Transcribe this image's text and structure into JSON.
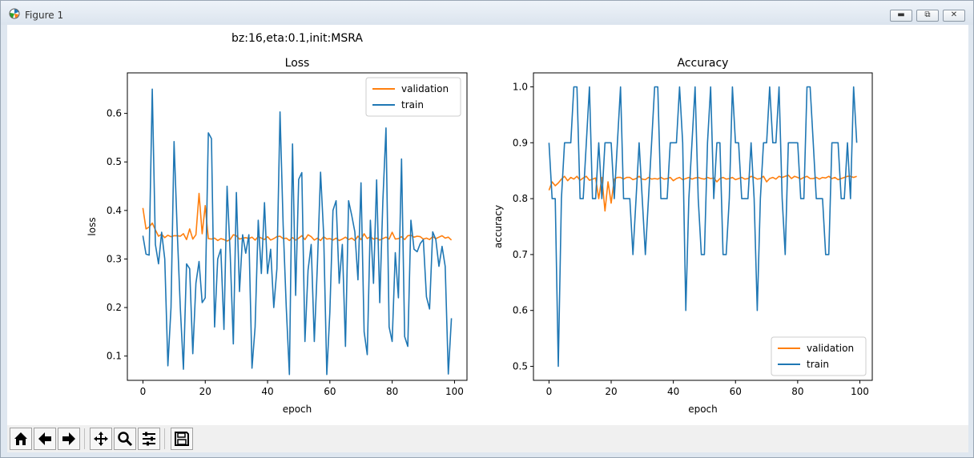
{
  "window": {
    "title": "Figure 1",
    "controls": [
      "minimize-icon",
      "maximize-icon",
      "close-icon"
    ]
  },
  "figure": {
    "suptitle": "bz:16,eta:0.1,init:MSRA"
  },
  "toolbar": {
    "buttons": [
      "home-icon",
      "back-icon",
      "forward-icon",
      "pan-icon",
      "zoom-icon",
      "configure-subplots-icon",
      "save-icon"
    ]
  },
  "colors": {
    "validation": "#ff7f0e",
    "train": "#1f77b4"
  },
  "chart_data": [
    {
      "type": "line",
      "title": "Loss",
      "xlabel": "epoch",
      "ylabel": "loss",
      "xlim": [
        -5,
        104
      ],
      "ylim": [
        0.05,
        0.6835
      ],
      "xticks": [
        0,
        20,
        40,
        60,
        80,
        100
      ],
      "yticks": [
        0.1,
        0.2,
        0.3,
        0.4,
        0.5,
        0.6
      ],
      "legend": "top-right",
      "x": [
        0,
        1,
        2,
        3,
        4,
        5,
        6,
        7,
        8,
        9,
        10,
        11,
        12,
        13,
        14,
        15,
        16,
        17,
        18,
        19,
        20,
        21,
        22,
        23,
        24,
        25,
        26,
        27,
        28,
        29,
        30,
        31,
        32,
        33,
        34,
        35,
        36,
        37,
        38,
        39,
        40,
        41,
        42,
        43,
        44,
        45,
        46,
        47,
        48,
        49,
        50,
        51,
        52,
        53,
        54,
        55,
        56,
        57,
        58,
        59,
        60,
        61,
        62,
        63,
        64,
        65,
        66,
        67,
        68,
        69,
        70,
        71,
        72,
        73,
        74,
        75,
        76,
        77,
        78,
        79,
        80,
        81,
        82,
        83,
        84,
        85,
        86,
        87,
        88,
        89,
        90,
        91,
        92,
        93,
        94,
        95,
        96,
        97,
        98,
        99
      ],
      "series": [
        {
          "name": "validation",
          "color": "#ff7f0e",
          "values": [
            0.405,
            0.362,
            0.366,
            0.374,
            0.36,
            0.347,
            0.351,
            0.344,
            0.349,
            0.346,
            0.348,
            0.348,
            0.347,
            0.352,
            0.34,
            0.362,
            0.341,
            0.35,
            0.435,
            0.352,
            0.41,
            0.342,
            0.341,
            0.343,
            0.338,
            0.342,
            0.34,
            0.337,
            0.34,
            0.35,
            0.348,
            0.341,
            0.343,
            0.344,
            0.342,
            0.345,
            0.339,
            0.346,
            0.343,
            0.34,
            0.346,
            0.339,
            0.342,
            0.346,
            0.347,
            0.342,
            0.343,
            0.338,
            0.344,
            0.339,
            0.343,
            0.348,
            0.34,
            0.35,
            0.346,
            0.339,
            0.343,
            0.338,
            0.346,
            0.341,
            0.342,
            0.339,
            0.343,
            0.338,
            0.341,
            0.345,
            0.34,
            0.343,
            0.338,
            0.347,
            0.34,
            0.352,
            0.342,
            0.346,
            0.341,
            0.343,
            0.339,
            0.342,
            0.345,
            0.341,
            0.355,
            0.341,
            0.342,
            0.346,
            0.34,
            0.348,
            0.349,
            0.345,
            0.347,
            0.346,
            0.341,
            0.343,
            0.34,
            0.346,
            0.342,
            0.345,
            0.348,
            0.343,
            0.345,
            0.339
          ]
        },
        {
          "name": "train",
          "color": "#1f77b4",
          "values": [
            0.348,
            0.31,
            0.308,
            0.65,
            0.33,
            0.29,
            0.355,
            0.3,
            0.08,
            0.2,
            0.542,
            0.36,
            0.2,
            0.073,
            0.29,
            0.28,
            0.105,
            0.25,
            0.295,
            0.21,
            0.22,
            0.56,
            0.548,
            0.16,
            0.3,
            0.32,
            0.155,
            0.45,
            0.31,
            0.125,
            0.437,
            0.233,
            0.35,
            0.312,
            0.35,
            0.075,
            0.16,
            0.38,
            0.27,
            0.416,
            0.27,
            0.32,
            0.2,
            0.28,
            0.603,
            0.37,
            0.2,
            0.062,
            0.537,
            0.225,
            0.464,
            0.478,
            0.13,
            0.277,
            0.33,
            0.13,
            0.29,
            0.479,
            0.35,
            0.062,
            0.19,
            0.4,
            0.42,
            0.25,
            0.33,
            0.12,
            0.42,
            0.39,
            0.356,
            0.257,
            0.457,
            0.15,
            0.103,
            0.38,
            0.25,
            0.463,
            0.21,
            0.42,
            0.57,
            0.16,
            0.13,
            0.313,
            0.22,
            0.506,
            0.14,
            0.12,
            0.38,
            0.32,
            0.315,
            0.332,
            0.34,
            0.222,
            0.197,
            0.356,
            0.34,
            0.285,
            0.326,
            0.285,
            0.063,
            0.178
          ]
        }
      ]
    },
    {
      "type": "line",
      "title": "Accuracy",
      "xlabel": "epoch",
      "ylabel": "accuracy",
      "xlim": [
        -5,
        104
      ],
      "ylim": [
        0.475,
        1.025
      ],
      "xticks": [
        0,
        20,
        40,
        60,
        80,
        100
      ],
      "yticks": [
        0.5,
        0.6,
        0.7,
        0.8,
        0.9,
        1.0
      ],
      "legend": "bottom-right",
      "x": [
        0,
        1,
        2,
        3,
        4,
        5,
        6,
        7,
        8,
        9,
        10,
        11,
        12,
        13,
        14,
        15,
        16,
        17,
        18,
        19,
        20,
        21,
        22,
        23,
        24,
        25,
        26,
        27,
        28,
        29,
        30,
        31,
        32,
        33,
        34,
        35,
        36,
        37,
        38,
        39,
        40,
        41,
        42,
        43,
        44,
        45,
        46,
        47,
        48,
        49,
        50,
        51,
        52,
        53,
        54,
        55,
        56,
        57,
        58,
        59,
        60,
        61,
        62,
        63,
        64,
        65,
        66,
        67,
        68,
        69,
        70,
        71,
        72,
        73,
        74,
        75,
        76,
        77,
        78,
        79,
        80,
        81,
        82,
        83,
        84,
        85,
        86,
        87,
        88,
        89,
        90,
        91,
        92,
        93,
        94,
        95,
        96,
        97,
        98,
        99
      ],
      "series": [
        {
          "name": "validation",
          "color": "#ff7f0e",
          "values": [
            0.815,
            0.83,
            0.823,
            0.828,
            0.835,
            0.84,
            0.832,
            0.838,
            0.835,
            0.84,
            0.833,
            0.837,
            0.84,
            0.833,
            0.835,
            0.837,
            0.8,
            0.838,
            0.778,
            0.83,
            0.792,
            0.835,
            0.838,
            0.838,
            0.835,
            0.838,
            0.838,
            0.834,
            0.836,
            0.84,
            0.835,
            0.834,
            0.838,
            0.835,
            0.836,
            0.835,
            0.838,
            0.835,
            0.836,
            0.838,
            0.832,
            0.836,
            0.838,
            0.834,
            0.836,
            0.838,
            0.835,
            0.837,
            0.838,
            0.836,
            0.835,
            0.838,
            0.836,
            0.837,
            0.83,
            0.836,
            0.838,
            0.835,
            0.836,
            0.838,
            0.834,
            0.836,
            0.838,
            0.835,
            0.836,
            0.84,
            0.838,
            0.835,
            0.836,
            0.84,
            0.83,
            0.836,
            0.838,
            0.835,
            0.84,
            0.838,
            0.84,
            0.842,
            0.836,
            0.84,
            0.838,
            0.835,
            0.838,
            0.84,
            0.836,
            0.836,
            0.838,
            0.835,
            0.838,
            0.837,
            0.84,
            0.836,
            0.838,
            0.834,
            0.836,
            0.838,
            0.84,
            0.84,
            0.838,
            0.84
          ]
        },
        {
          "name": "train",
          "color": "#1f77b4",
          "values": [
            0.9,
            0.8,
            0.8,
            0.5,
            0.8,
            0.9,
            0.9,
            0.9,
            1.0,
            1.0,
            0.8,
            0.8,
            0.9,
            1.0,
            0.8,
            0.8,
            0.9,
            0.8,
            0.9,
            0.9,
            0.9,
            0.8,
            0.9,
            1.0,
            0.8,
            0.8,
            0.8,
            0.7,
            0.8,
            0.9,
            0.8,
            0.7,
            0.8,
            0.9,
            1.0,
            1.0,
            0.8,
            0.8,
            0.8,
            0.9,
            0.9,
            0.9,
            1.0,
            0.9,
            0.6,
            0.8,
            0.9,
            1.0,
            0.8,
            0.7,
            0.7,
            0.9,
            1.0,
            0.8,
            0.9,
            0.9,
            0.7,
            0.7,
            0.8,
            1.0,
            0.9,
            0.9,
            0.8,
            0.8,
            0.8,
            0.9,
            0.8,
            0.6,
            0.8,
            0.9,
            0.9,
            1.0,
            0.9,
            0.9,
            1.0,
            0.8,
            0.7,
            0.9,
            0.9,
            0.9,
            0.9,
            0.8,
            0.8,
            1.0,
            1.0,
            0.9,
            0.8,
            0.8,
            0.8,
            0.7,
            0.7,
            0.9,
            0.9,
            0.9,
            0.8,
            0.8,
            0.9,
            0.8,
            1.0,
            0.9
          ]
        }
      ]
    }
  ]
}
